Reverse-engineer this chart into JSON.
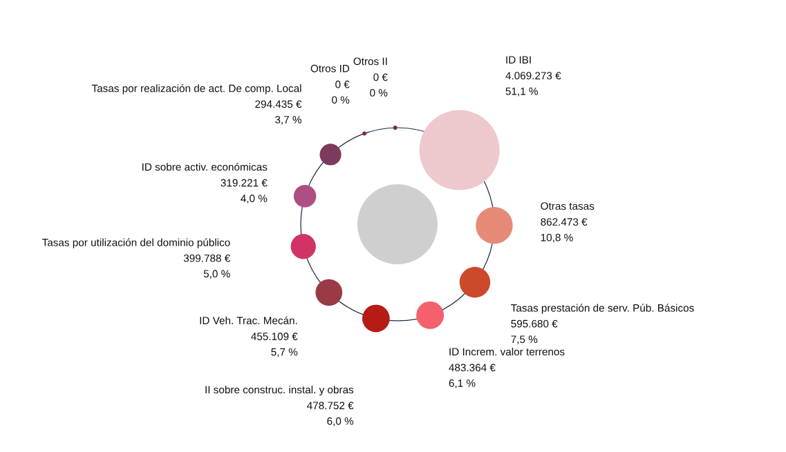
{
  "chart_data": {
    "type": "other",
    "categories": [
      "Otros ID",
      "Otros II",
      "ID IBI",
      "Otras tasas",
      "Tasas prestación de serv. Púb. Básicos",
      "ID Increm. valor terrenos",
      "II sobre construc. instal. y obras",
      "ID Veh. Trac. Mecán.",
      "Tasas por utilización del dominio público",
      "ID sobre activ. económicas",
      "Tasas por realización de act. De comp. Local"
    ],
    "values": [
      0,
      0,
      4069273,
      862473,
      595680,
      483364,
      478752,
      455109,
      399788,
      319221,
      294435
    ],
    "value_labels": [
      "0 €\n0 %",
      "0 €\n0 %",
      "4.069.273 €\n51,1 %",
      "862.473 €\n10,8 %",
      "595.680 €\n7,5 %",
      "483.364 €\n6,1 %",
      "478.752 €\n6,0 %",
      "455.109 €\n5,7 %",
      "399.788 €\n5,0 %",
      "319.221 €\n4,0 %",
      "294.435 €\n3,7 %"
    ],
    "colors": [
      "#7a2a3c",
      "#7a2a3c",
      "#edc8cc",
      "#e58a76",
      "#cc4a2a",
      "#f4606c",
      "#b51c14",
      "#9a3a44",
      "#d13464",
      "#ae4e84",
      "#7c3a5c"
    ],
    "legend": false
  }
}
